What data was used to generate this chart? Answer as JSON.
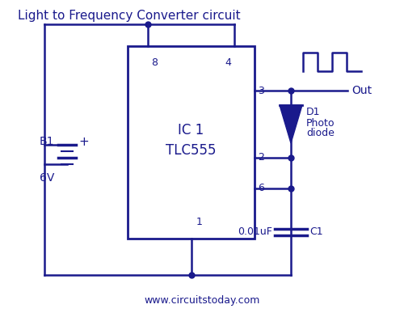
{
  "title": "Light to Frequency Converter circuit",
  "watermark": "www.circuitstoday.com",
  "color": "#1a1a8c",
  "bg_color": "#ffffff",
  "ic_label1": "IC 1",
  "ic_label2": "TLC555",
  "battery_label1": "B1",
  "battery_label2": "6V",
  "battery_plus": "+",
  "pin8": "8",
  "pin4": "4",
  "pin3": "3",
  "pin2": "2",
  "pin6": "6",
  "pin1": "1",
  "d1_label": "D1",
  "photo_label1": "Photo",
  "photo_label2": "diode",
  "cap_label1": "0.01uF",
  "cap_label2": "C1",
  "out_label": "Out"
}
